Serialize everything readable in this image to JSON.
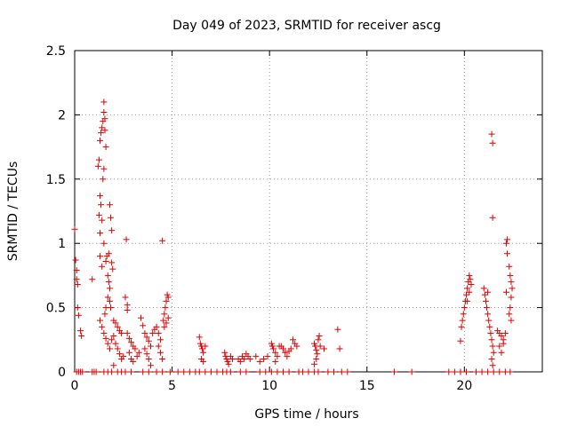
{
  "chart_data": {
    "type": "scatter",
    "title": "Day 049 of 2023, SRMTID for receiver ascg",
    "xlabel": "GPS time / hours",
    "ylabel": "SRMTID / TECUs",
    "xlim": [
      0,
      24
    ],
    "ylim": [
      0,
      2.5
    ],
    "xticks": [
      0,
      5,
      10,
      15,
      20
    ],
    "yticks": [
      0,
      0.5,
      1,
      1.5,
      2,
      2.5
    ],
    "grid": true,
    "marker": "+",
    "colors": {
      "points": "#dd0000",
      "grid": "#a0a0a0",
      "axis": "#000000"
    },
    "series": [
      {
        "name": "SRMTID",
        "points": [
          [
            0.0,
            1.11
          ],
          [
            0.05,
            0.87
          ],
          [
            0.1,
            0.79
          ],
          [
            0.1,
            0.72
          ],
          [
            0.15,
            0.68
          ],
          [
            0.15,
            0.5
          ],
          [
            0.2,
            0.44
          ],
          [
            0.3,
            0.32
          ],
          [
            0.35,
            0.28
          ],
          [
            0.1,
            0.0
          ],
          [
            0.2,
            0.0
          ],
          [
            0.3,
            0.0
          ],
          [
            0.4,
            0.0
          ],
          [
            0.9,
            0.72
          ],
          [
            0.9,
            0.0
          ],
          [
            1.0,
            0.0
          ],
          [
            1.1,
            0.0
          ],
          [
            1.2,
            1.6
          ],
          [
            1.25,
            1.65
          ],
          [
            1.3,
            1.8
          ],
          [
            1.35,
            1.86
          ],
          [
            1.4,
            1.9
          ],
          [
            1.45,
            1.95
          ],
          [
            1.5,
            2.1
          ],
          [
            1.5,
            2.02
          ],
          [
            1.55,
            1.97
          ],
          [
            1.55,
            1.88
          ],
          [
            1.6,
            1.75
          ],
          [
            1.5,
            1.58
          ],
          [
            1.45,
            1.5
          ],
          [
            1.3,
            1.37
          ],
          [
            1.35,
            1.3
          ],
          [
            1.25,
            1.22
          ],
          [
            1.4,
            1.18
          ],
          [
            1.3,
            1.08
          ],
          [
            1.5,
            1.0
          ],
          [
            1.3,
            0.9
          ],
          [
            1.4,
            0.82
          ],
          [
            1.6,
            0.86
          ],
          [
            1.65,
            0.9
          ],
          [
            1.7,
            0.75
          ],
          [
            1.75,
            0.7
          ],
          [
            1.8,
            0.65
          ],
          [
            1.7,
            0.58
          ],
          [
            1.6,
            0.5
          ],
          [
            1.55,
            0.45
          ],
          [
            1.8,
            1.3
          ],
          [
            1.85,
            1.2
          ],
          [
            1.9,
            1.1
          ],
          [
            1.75,
            0.92
          ],
          [
            1.9,
            0.85
          ],
          [
            1.95,
            0.8
          ],
          [
            1.8,
            0.55
          ],
          [
            1.85,
            0.5
          ],
          [
            1.3,
            0.4
          ],
          [
            1.4,
            0.35
          ],
          [
            1.5,
            0.3
          ],
          [
            1.6,
            0.26
          ],
          [
            1.7,
            0.22
          ],
          [
            1.8,
            0.18
          ],
          [
            1.9,
            0.25
          ],
          [
            1.5,
            0.0
          ],
          [
            1.7,
            0.0
          ],
          [
            1.9,
            0.0
          ],
          [
            2.0,
            0.4
          ],
          [
            2.1,
            0.38
          ],
          [
            2.2,
            0.35
          ],
          [
            2.3,
            0.32
          ],
          [
            2.4,
            0.3
          ],
          [
            2.0,
            0.28
          ],
          [
            2.1,
            0.22
          ],
          [
            2.2,
            0.18
          ],
          [
            2.3,
            0.14
          ],
          [
            2.4,
            0.1
          ],
          [
            2.5,
            0.12
          ],
          [
            2.0,
            0.05
          ],
          [
            2.2,
            0.0
          ],
          [
            2.4,
            0.0
          ],
          [
            2.65,
            1.03
          ],
          [
            2.6,
            0.58
          ],
          [
            2.7,
            0.52
          ],
          [
            2.7,
            0.48
          ],
          [
            2.7,
            0.3
          ],
          [
            2.8,
            0.26
          ],
          [
            2.9,
            0.23
          ],
          [
            3.0,
            0.2
          ],
          [
            3.1,
            0.18
          ],
          [
            2.8,
            0.15
          ],
          [
            2.9,
            0.1
          ],
          [
            3.0,
            0.08
          ],
          [
            3.2,
            0.12
          ],
          [
            3.3,
            0.15
          ],
          [
            2.6,
            0.0
          ],
          [
            2.9,
            0.0
          ],
          [
            3.4,
            0.42
          ],
          [
            3.5,
            0.36
          ],
          [
            3.6,
            0.3
          ],
          [
            3.7,
            0.27
          ],
          [
            3.8,
            0.24
          ],
          [
            3.9,
            0.2
          ],
          [
            3.6,
            0.18
          ],
          [
            3.7,
            0.14
          ],
          [
            3.8,
            0.1
          ],
          [
            3.9,
            0.05
          ],
          [
            3.5,
            0.0
          ],
          [
            3.8,
            0.0
          ],
          [
            4.0,
            0.3
          ],
          [
            4.1,
            0.33
          ],
          [
            4.2,
            0.35
          ],
          [
            4.3,
            0.3
          ],
          [
            4.4,
            0.25
          ],
          [
            4.3,
            0.2
          ],
          [
            4.4,
            0.15
          ],
          [
            4.5,
            0.1
          ],
          [
            4.5,
            1.02
          ],
          [
            4.2,
            0.0
          ],
          [
            4.5,
            0.0
          ],
          [
            4.55,
            0.4
          ],
          [
            4.6,
            0.45
          ],
          [
            4.65,
            0.5
          ],
          [
            4.7,
            0.55
          ],
          [
            4.75,
            0.6
          ],
          [
            4.8,
            0.58
          ],
          [
            4.6,
            0.35
          ],
          [
            4.7,
            0.38
          ],
          [
            4.8,
            0.42
          ],
          [
            4.9,
            0.0
          ],
          [
            5.3,
            0.0
          ],
          [
            5.6,
            0.0
          ],
          [
            5.9,
            0.0
          ],
          [
            6.2,
            0.0
          ],
          [
            6.4,
            0.27
          ],
          [
            6.45,
            0.22
          ],
          [
            6.5,
            0.2
          ],
          [
            6.55,
            0.18
          ],
          [
            6.6,
            0.15
          ],
          [
            6.5,
            0.1
          ],
          [
            6.6,
            0.08
          ],
          [
            6.7,
            0.2
          ],
          [
            6.4,
            0.0
          ],
          [
            6.7,
            0.0
          ],
          [
            7.0,
            0.0
          ],
          [
            7.3,
            0.0
          ],
          [
            7.6,
            0.0
          ],
          [
            7.7,
            0.15
          ],
          [
            7.75,
            0.12
          ],
          [
            7.8,
            0.1
          ],
          [
            7.85,
            0.08
          ],
          [
            7.9,
            0.06
          ],
          [
            8.0,
            0.12
          ],
          [
            8.1,
            0.1
          ],
          [
            7.8,
            0.0
          ],
          [
            8.0,
            0.0
          ],
          [
            8.4,
            0.1
          ],
          [
            8.5,
            0.08
          ],
          [
            8.6,
            0.12
          ],
          [
            8.7,
            0.1
          ],
          [
            8.8,
            0.14
          ],
          [
            8.9,
            0.12
          ],
          [
            9.0,
            0.1
          ],
          [
            8.5,
            0.0
          ],
          [
            8.8,
            0.0
          ],
          [
            9.3,
            0.12
          ],
          [
            9.5,
            0.08
          ],
          [
            9.7,
            0.1
          ],
          [
            9.9,
            0.12
          ],
          [
            9.5,
            0.0
          ],
          [
            9.8,
            0.0
          ],
          [
            10.1,
            0.22
          ],
          [
            10.15,
            0.2
          ],
          [
            10.2,
            0.18
          ],
          [
            10.3,
            0.15
          ],
          [
            10.4,
            0.12
          ],
          [
            10.3,
            0.08
          ],
          [
            10.5,
            0.2
          ],
          [
            10.1,
            0.0
          ],
          [
            10.4,
            0.0
          ],
          [
            10.6,
            0.2
          ],
          [
            10.7,
            0.18
          ],
          [
            10.8,
            0.15
          ],
          [
            10.9,
            0.12
          ],
          [
            11.0,
            0.16
          ],
          [
            11.1,
            0.18
          ],
          [
            10.7,
            0.0
          ],
          [
            11.0,
            0.0
          ],
          [
            11.2,
            0.25
          ],
          [
            11.3,
            0.22
          ],
          [
            11.4,
            0.2
          ],
          [
            11.5,
            0.0
          ],
          [
            11.7,
            0.0
          ],
          [
            12.0,
            0.0
          ],
          [
            12.3,
            0.22
          ],
          [
            12.35,
            0.2
          ],
          [
            12.4,
            0.17
          ],
          [
            12.45,
            0.14
          ],
          [
            12.5,
            0.25
          ],
          [
            12.55,
            0.28
          ],
          [
            12.6,
            0.2
          ],
          [
            12.3,
            0.06
          ],
          [
            12.4,
            0.1
          ],
          [
            12.3,
            0.0
          ],
          [
            12.5,
            0.0
          ],
          [
            12.8,
            0.18
          ],
          [
            13.0,
            0.0
          ],
          [
            13.3,
            0.0
          ],
          [
            13.5,
            0.33
          ],
          [
            13.6,
            0.18
          ],
          [
            13.7,
            0.0
          ],
          [
            14.0,
            0.0
          ],
          [
            16.4,
            0.0
          ],
          [
            17.3,
            0.0
          ],
          [
            19.2,
            0.0
          ],
          [
            19.5,
            0.0
          ],
          [
            19.8,
            0.24
          ],
          [
            19.85,
            0.35
          ],
          [
            19.9,
            0.4
          ],
          [
            19.95,
            0.45
          ],
          [
            20.0,
            0.5
          ],
          [
            20.05,
            0.55
          ],
          [
            20.1,
            0.6
          ],
          [
            20.15,
            0.65
          ],
          [
            20.2,
            0.7
          ],
          [
            20.25,
            0.75
          ],
          [
            20.3,
            0.72
          ],
          [
            20.35,
            0.68
          ],
          [
            20.25,
            0.62
          ],
          [
            20.15,
            0.55
          ],
          [
            19.8,
            0.0
          ],
          [
            20.1,
            0.0
          ],
          [
            20.6,
            0.0
          ],
          [
            20.9,
            0.0
          ],
          [
            21.0,
            0.65
          ],
          [
            21.05,
            0.6
          ],
          [
            21.1,
            0.55
          ],
          [
            21.15,
            0.5
          ],
          [
            21.2,
            0.45
          ],
          [
            21.25,
            0.4
          ],
          [
            21.3,
            0.35
          ],
          [
            21.35,
            0.3
          ],
          [
            21.4,
            0.25
          ],
          [
            21.45,
            0.2
          ],
          [
            21.5,
            0.15
          ],
          [
            21.4,
            0.1
          ],
          [
            21.45,
            0.05
          ],
          [
            21.2,
            0.62
          ],
          [
            21.4,
            1.85
          ],
          [
            21.45,
            1.78
          ],
          [
            21.45,
            1.2
          ],
          [
            21.2,
            0.0
          ],
          [
            21.5,
            0.0
          ],
          [
            21.7,
            0.32
          ],
          [
            21.8,
            0.3
          ],
          [
            21.9,
            0.28
          ],
          [
            22.0,
            0.25
          ],
          [
            21.8,
            0.2
          ],
          [
            21.9,
            0.15
          ],
          [
            22.0,
            0.22
          ],
          [
            22.1,
            0.3
          ],
          [
            22.15,
            0.62
          ],
          [
            22.2,
            0.92
          ],
          [
            22.15,
            1.0
          ],
          [
            22.2,
            1.03
          ],
          [
            21.8,
            0.0
          ],
          [
            22.1,
            0.0
          ],
          [
            22.3,
            0.82
          ],
          [
            22.35,
            0.75
          ],
          [
            22.4,
            0.7
          ],
          [
            22.45,
            0.65
          ],
          [
            22.4,
            0.58
          ],
          [
            22.35,
            0.5
          ],
          [
            22.3,
            0.45
          ],
          [
            22.4,
            0.4
          ],
          [
            22.35,
            0.0
          ]
        ]
      }
    ]
  }
}
